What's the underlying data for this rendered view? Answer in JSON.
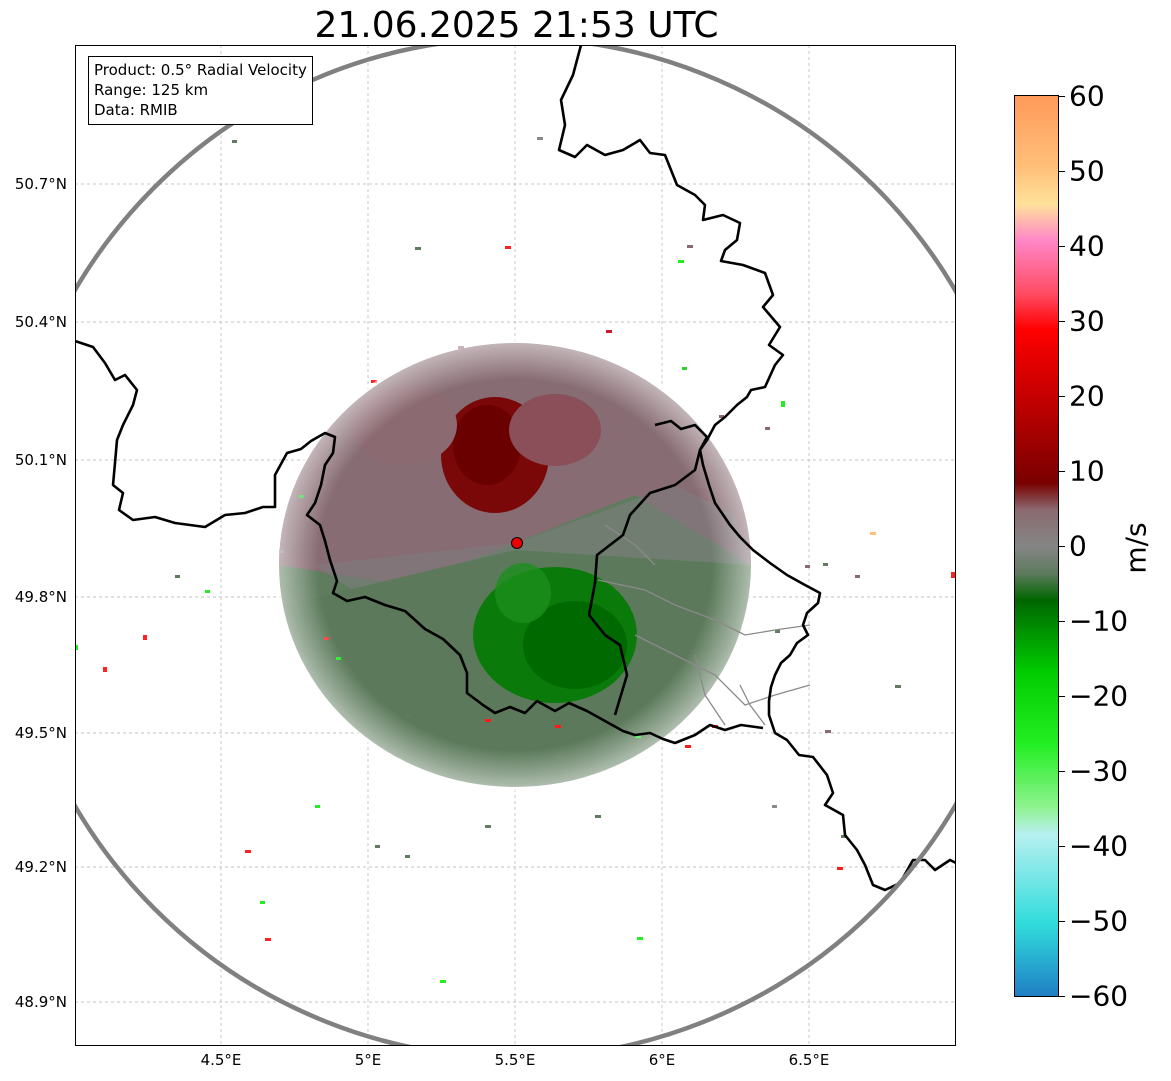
{
  "title": "21.06.2025 21:53 UTC",
  "info": {
    "product": "Product: 0.5° Radial Velocity",
    "range": "Range: 125 km",
    "data": "Data: RMIB"
  },
  "axes": {
    "lat_labels": [
      "50.7°N",
      "50.4°N",
      "50.1°N",
      "49.8°N",
      "49.5°N",
      "49.2°N",
      "48.9°N"
    ],
    "lon_labels": [
      "4.5°E",
      "5°E",
      "5.5°E",
      "6°E",
      "6.5°E"
    ]
  },
  "colorbar": {
    "unit": "m/s",
    "ticks": [
      "60",
      "50",
      "40",
      "30",
      "20",
      "10",
      "0",
      "−10",
      "−20",
      "−30",
      "−40",
      "−50",
      "−60"
    ],
    "range": [
      -60,
      60
    ],
    "colors": {
      "max": "#ff9a5a",
      "orange": "#ffc07a",
      "yellow": "#ffe19a",
      "pink": "#ff88c8",
      "rose": "#ff4a62",
      "red": "#ff0000",
      "dark_red": "#7a0000",
      "maroon_gray": "#8a6a70",
      "zero_gray": "#858585",
      "green_gray": "#5e7a5e",
      "dark_green": "#006600",
      "green": "#00cc00",
      "bright_green": "#22ee22",
      "light_green": "#8ef28e",
      "pale_cyan": "#b8f0f0",
      "cyan": "#30dcdc",
      "blue": "#1f7fc4"
    }
  },
  "radar": {
    "site_marker_color": "#ee0000",
    "range_ring_color": "#808080"
  }
}
